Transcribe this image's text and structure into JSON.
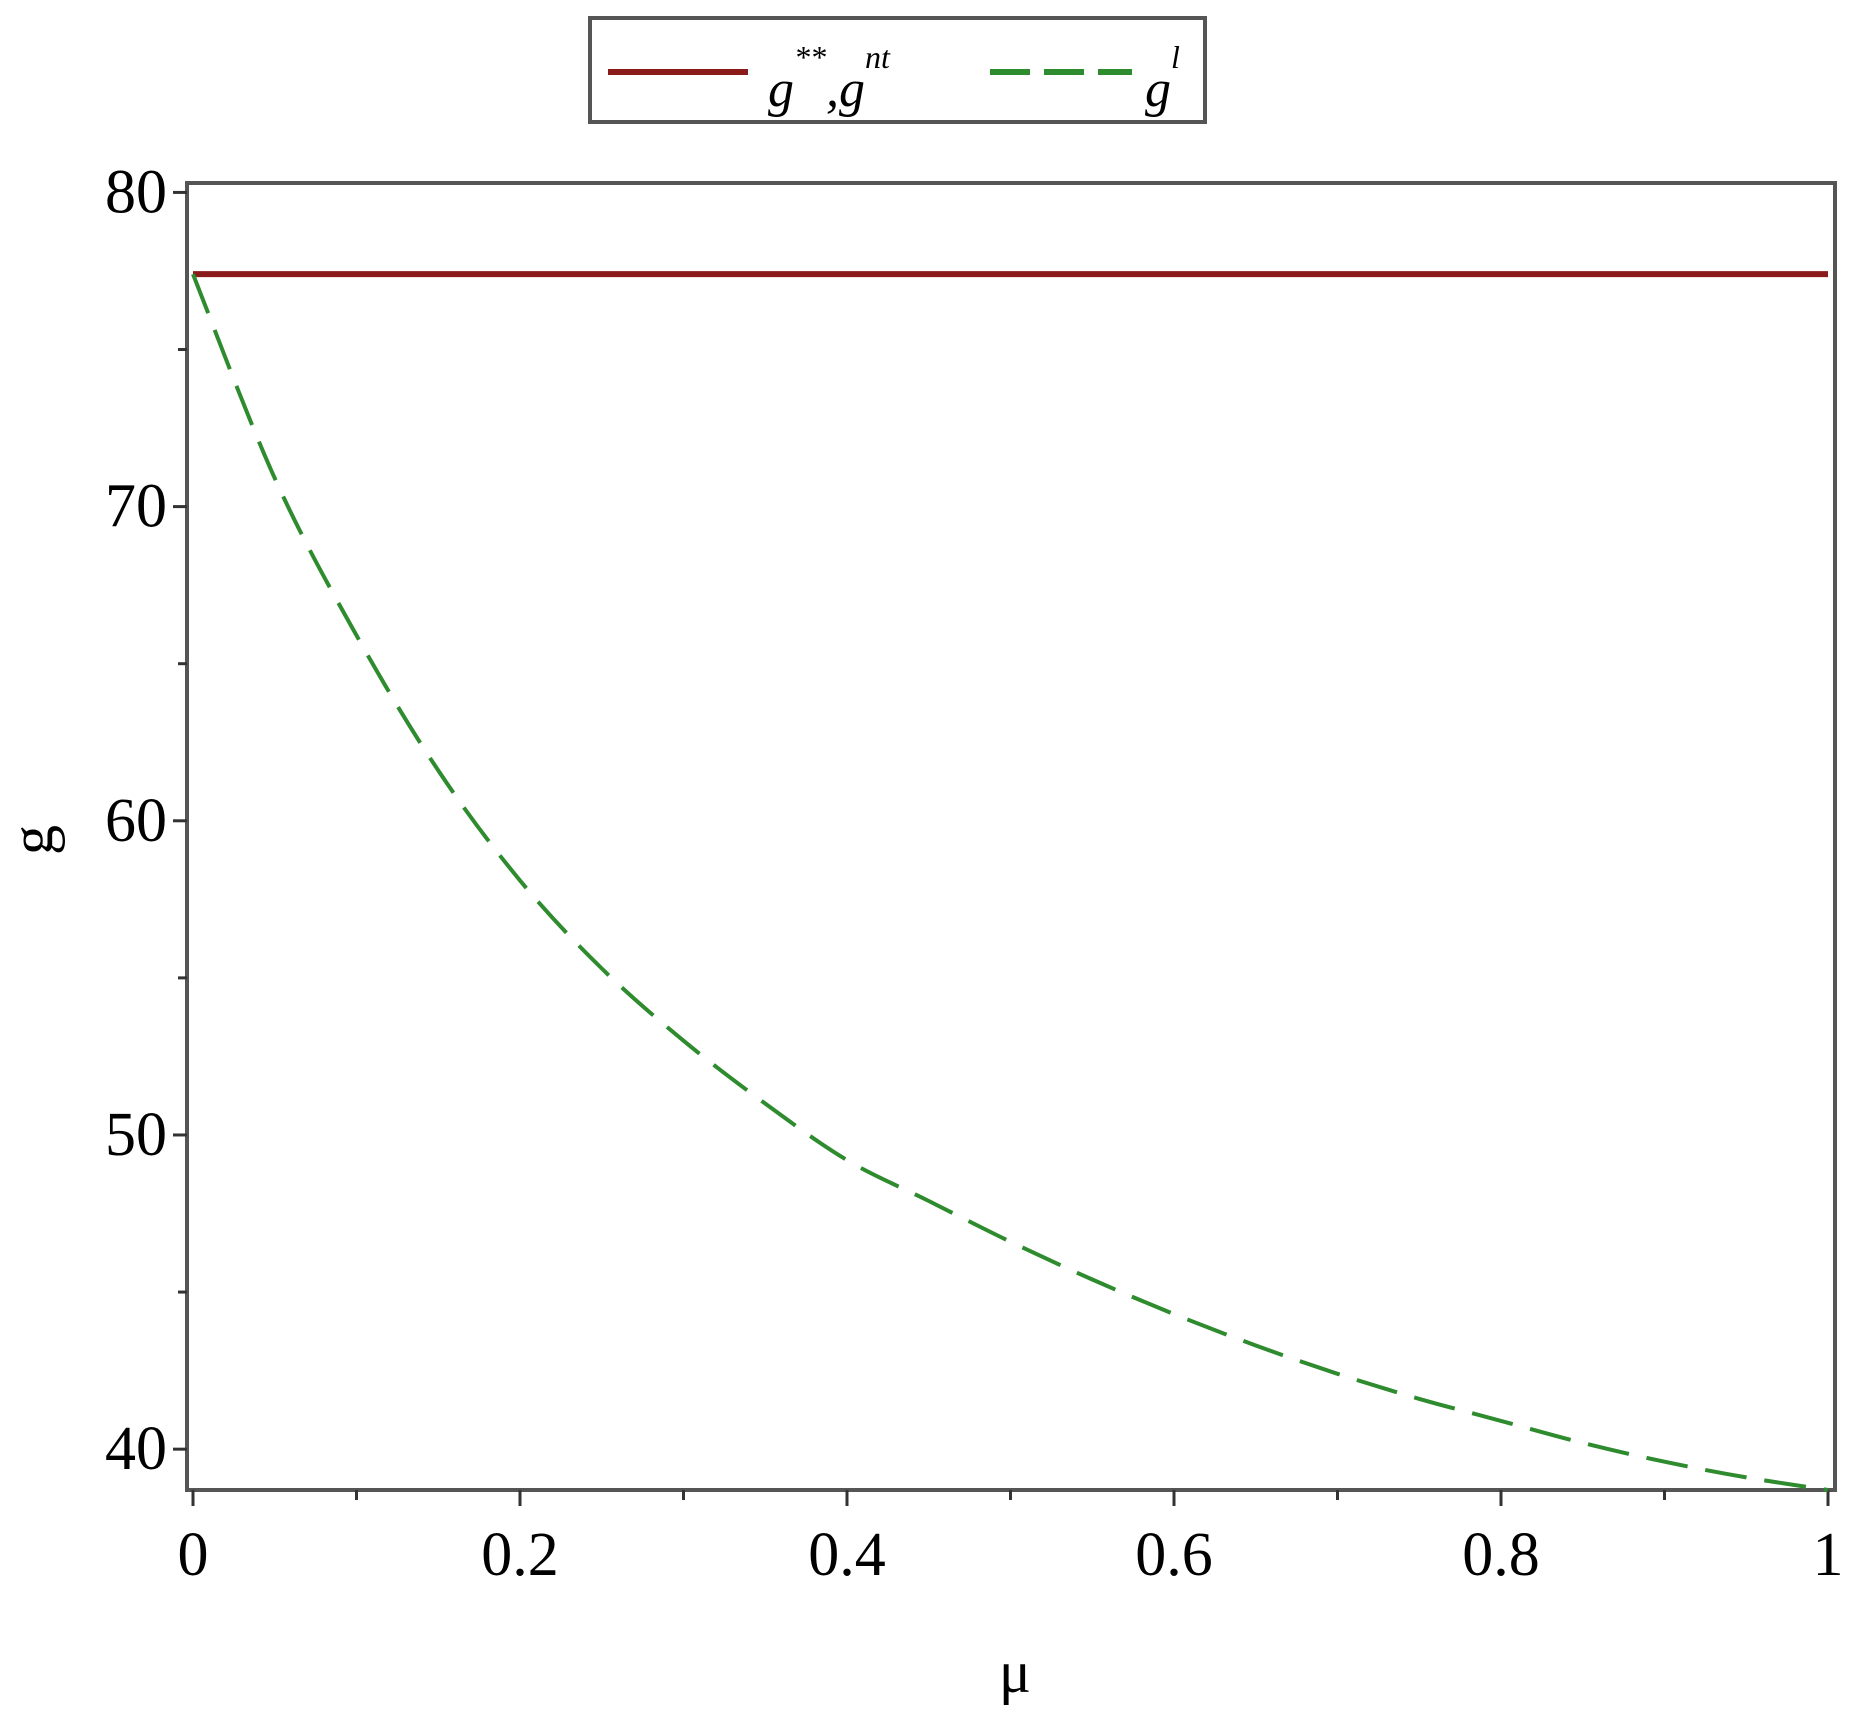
{
  "chart_data": {
    "type": "line",
    "title": "",
    "xlabel": "μ",
    "ylabel": "g",
    "xlim": [
      0,
      1
    ],
    "ylim": [
      38.7,
      80.3
    ],
    "xticks": [
      0,
      0.2,
      0.4,
      0.6,
      0.8,
      1
    ],
    "xtick_labels": [
      "0",
      "0.2",
      "0.4",
      "0.6",
      "0.8",
      "1"
    ],
    "yticks": [
      40,
      50,
      60,
      70,
      80
    ],
    "ytick_labels": [
      "40",
      "50",
      "60",
      "70",
      "80"
    ],
    "grid": false,
    "legend_position": "top-center, outside plot",
    "series": [
      {
        "name": "g**, gnt",
        "style": "solid",
        "color": "#8b1a1a",
        "x": [
          0,
          0.2,
          0.4,
          0.6,
          0.8,
          1
        ],
        "y": [
          77.4,
          77.4,
          77.4,
          77.4,
          77.4,
          77.4
        ]
      },
      {
        "name": "gl",
        "style": "dashed",
        "color": "#2e8b2e",
        "x": [
          0,
          0.05,
          0.1,
          0.15,
          0.2,
          0.25,
          0.3,
          0.35,
          0.4,
          0.45,
          0.5,
          0.55,
          0.6,
          0.65,
          0.7,
          0.75,
          0.8,
          0.85,
          0.9,
          0.95,
          1
        ],
        "y": [
          77.4,
          70.9,
          65.9,
          61.6,
          58.1,
          55.3,
          53.0,
          51.0,
          49.2,
          47.9,
          46.6,
          45.4,
          44.3,
          43.3,
          42.4,
          41.6,
          40.9,
          40.2,
          39.6,
          39.1,
          38.7
        ]
      }
    ]
  },
  "legend": {
    "entries": [
      {
        "base": "g",
        "sup": "**",
        "separator": ",",
        "base2": "g",
        "sup2": "nt"
      },
      {
        "base": "g",
        "sup": "l"
      }
    ]
  }
}
